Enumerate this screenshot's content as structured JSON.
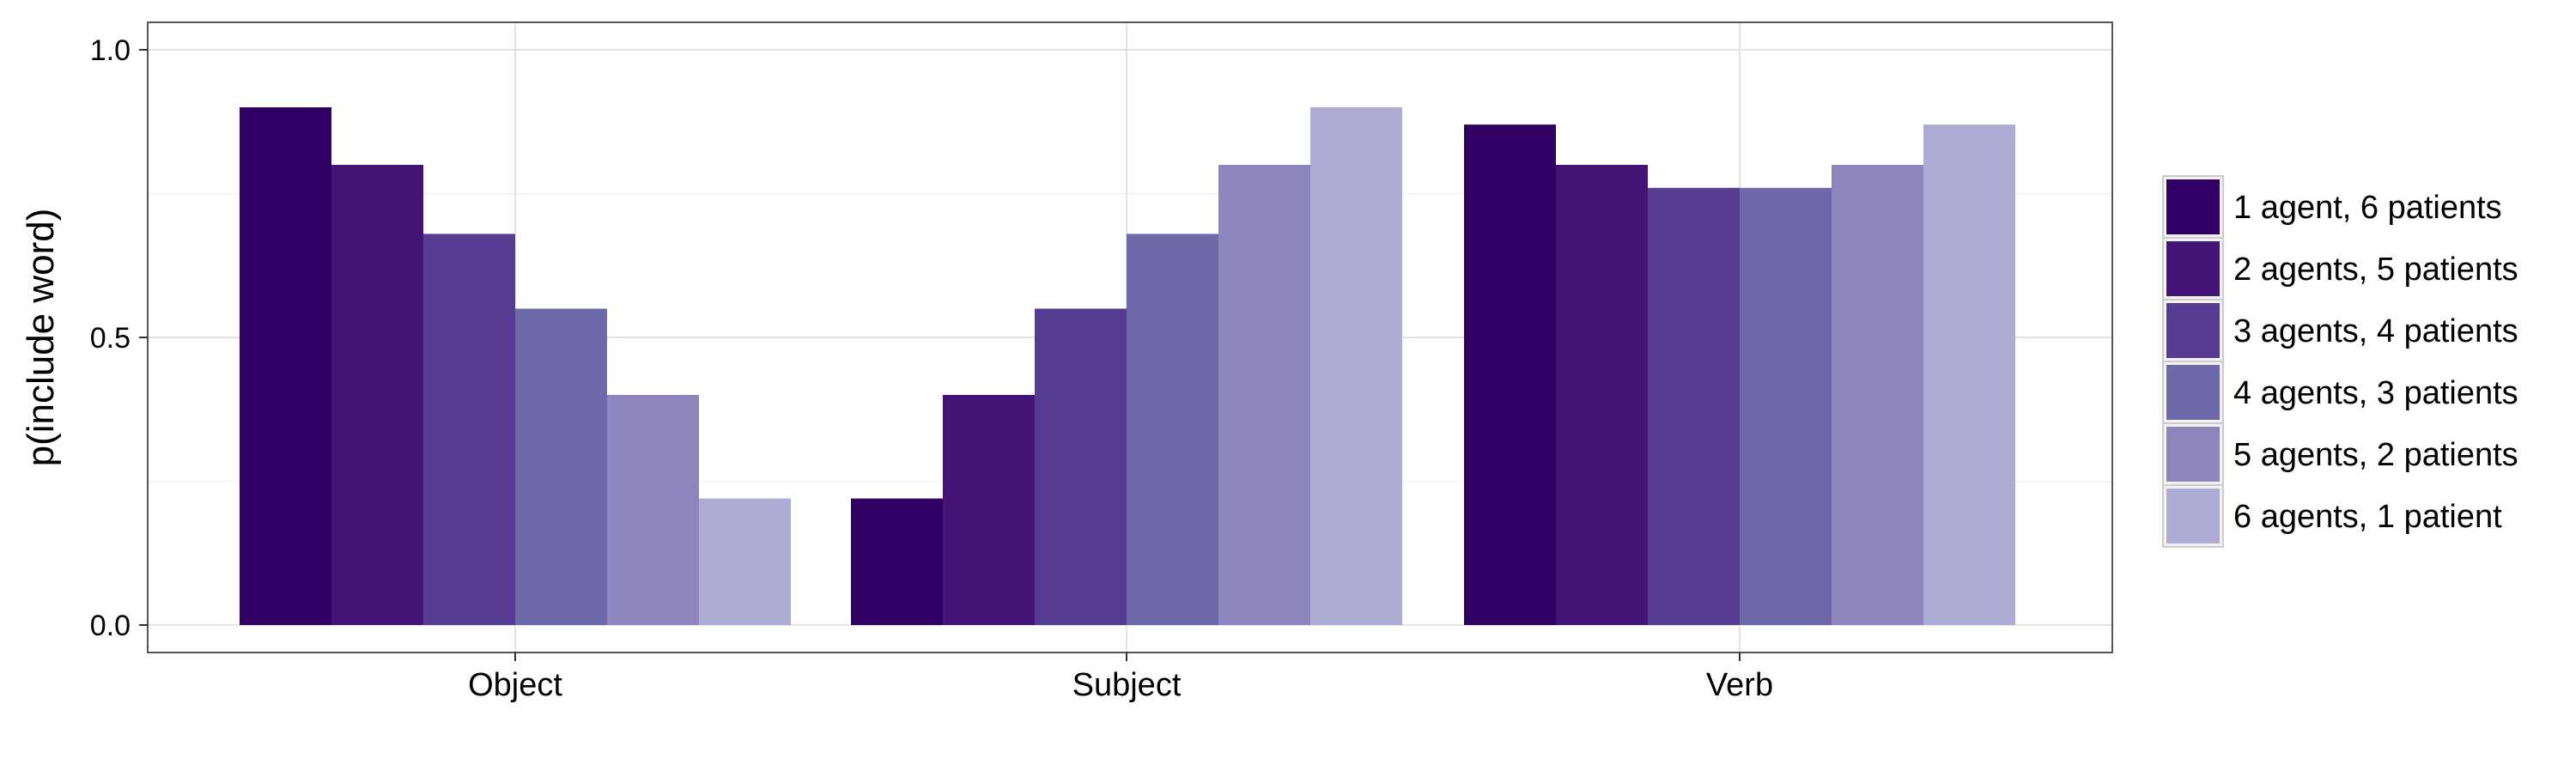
{
  "chart_data": {
    "type": "bar",
    "title": "",
    "xlabel": "",
    "ylabel": "p(include word)",
    "ylim": [
      0,
      1.05
    ],
    "yticks": [
      0.0,
      0.5,
      1.0
    ],
    "ytick_labels": [
      "0.0",
      "0.5",
      "1.0"
    ],
    "grid": true,
    "legend_position": "right",
    "categories": [
      "Object",
      "Subject",
      "Verb"
    ],
    "series": [
      {
        "name": "1 agent, 6 patients",
        "color": "#300064",
        "values": [
          0.9,
          0.22,
          0.87
        ]
      },
      {
        "name": "2 agents, 5 patients",
        "color": "#421475",
        "values": [
          0.8,
          0.4,
          0.8
        ]
      },
      {
        "name": "3 agents, 4 patients",
        "color": "#563C92",
        "values": [
          0.68,
          0.55,
          0.76
        ]
      },
      {
        "name": "4 agents, 3 patients",
        "color": "#6E6AAA",
        "values": [
          0.55,
          0.68,
          0.76
        ]
      },
      {
        "name": "5 agents, 2 patients",
        "color": "#8C86BC",
        "values": [
          0.4,
          0.8,
          0.8
        ]
      },
      {
        "name": "6 agents, 1 patient",
        "color": "#ACACD4",
        "values": [
          0.22,
          0.9,
          0.87
        ]
      }
    ]
  }
}
